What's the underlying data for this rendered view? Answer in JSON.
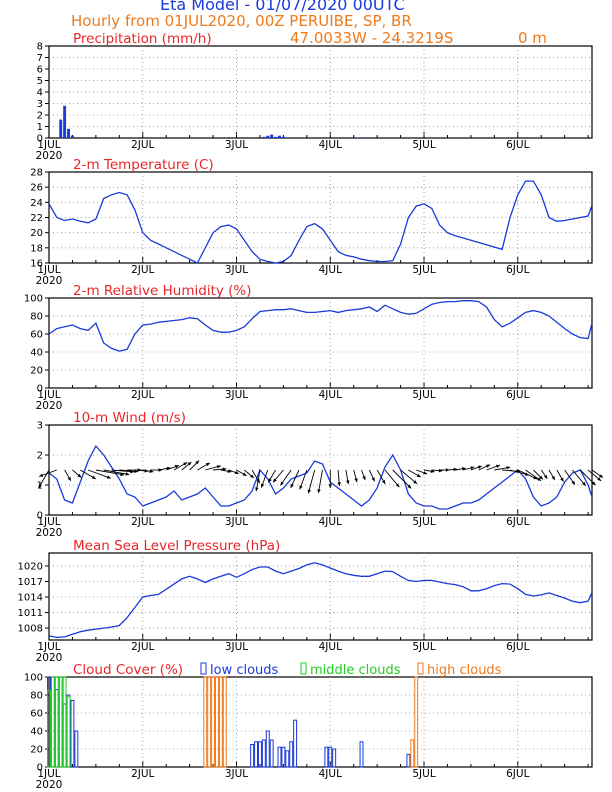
{
  "header": {
    "title": "Eta Model - 01/07/2020 00UTC",
    "subtitle": "Hourly from 01JUL2020, 00Z  PERUIBE, SP, BR",
    "coords": "47.0033W - 24.3219S",
    "elevation": "0   m"
  },
  "colors": {
    "title": "#1a3ad9",
    "subtitle": "#f07a1a",
    "panel_title": "#e8262a",
    "line": "#1a3ad9",
    "low": "#1a3ad9",
    "middle": "#1fcf1f",
    "high": "#f07a1a",
    "wind": "#000000",
    "grid": "#888888"
  },
  "chart_data": [
    {
      "id": "precip",
      "type": "bar",
      "title": "Precipitation (mm/h)",
      "ylim": [
        0,
        8
      ],
      "yticks": [
        0,
        1,
        2,
        3,
        4,
        5,
        6,
        7,
        8
      ],
      "x_days": [
        "1JUL",
        "2JUL",
        "3JUL",
        "4JUL",
        "5JUL",
        "6JUL"
      ],
      "x_year": "2020",
      "hours": [
        3,
        4,
        5,
        6,
        55,
        56,
        57,
        58,
        59,
        60,
        79
      ],
      "values": [
        1.6,
        2.8,
        0.8,
        0.2,
        0.1,
        0.2,
        0.3,
        0.1,
        0.2,
        0.1,
        0.05
      ]
    },
    {
      "id": "temp",
      "type": "line",
      "title": "2-m Temperature (C)",
      "ylim": [
        16,
        28
      ],
      "yticks": [
        16,
        18,
        20,
        22,
        24,
        26,
        28
      ],
      "x_days": [
        "1JUL",
        "2JUL",
        "3JUL",
        "4JUL",
        "5JUL",
        "6JUL"
      ],
      "x_year": "2020",
      "hours": [
        0,
        2,
        4,
        6,
        8,
        10,
        12,
        14,
        16,
        18,
        20,
        22,
        24,
        26,
        28,
        30,
        32,
        34,
        36,
        38,
        40,
        42,
        44,
        46,
        48,
        50,
        52,
        54,
        56,
        58,
        60,
        62,
        64,
        66,
        68,
        70,
        72,
        74,
        76,
        78,
        80,
        82,
        84,
        86,
        88,
        90,
        92,
        94,
        96,
        98,
        100,
        102,
        104,
        106,
        108,
        110,
        112,
        114,
        116,
        118,
        120,
        122,
        124,
        126,
        128,
        130,
        132,
        134,
        136,
        138,
        139
      ],
      "values": [
        23.8,
        22,
        21.6,
        21.8,
        21.5,
        21.3,
        21.8,
        24.5,
        25,
        25.3,
        25,
        23,
        20,
        19,
        18.5,
        18,
        17.5,
        17,
        16.5,
        16,
        18,
        20,
        20.8,
        21,
        20.5,
        19,
        17.5,
        16.5,
        16.2,
        16,
        16.2,
        17,
        19,
        20.8,
        21.2,
        20.5,
        19,
        17.5,
        17,
        16.8,
        16.5,
        16.3,
        16.2,
        16.2,
        16.3,
        18.5,
        22,
        23.5,
        23.8,
        23.2,
        21,
        20,
        19.6,
        19.3,
        19,
        18.7,
        18.4,
        18.1,
        17.8,
        22,
        25,
        26.8,
        26.8,
        25,
        22,
        21.5,
        21.6,
        21.8,
        22,
        22.2,
        23.6
      ]
    },
    {
      "id": "rh",
      "type": "line",
      "title": "2-m Relative Humidity (%)",
      "ylim": [
        0,
        100
      ],
      "yticks": [
        0,
        20,
        40,
        60,
        80,
        100
      ],
      "x_days": [
        "1JUL",
        "2JUL",
        "3JUL",
        "4JUL",
        "5JUL",
        "6JUL"
      ],
      "x_year": "2020",
      "hours": [
        0,
        2,
        4,
        6,
        8,
        10,
        12,
        14,
        16,
        18,
        20,
        22,
        24,
        26,
        28,
        30,
        32,
        34,
        36,
        38,
        40,
        42,
        44,
        46,
        48,
        50,
        52,
        54,
        56,
        58,
        60,
        62,
        64,
        66,
        68,
        70,
        72,
        74,
        76,
        78,
        80,
        82,
        84,
        86,
        88,
        90,
        92,
        94,
        96,
        98,
        100,
        102,
        104,
        106,
        108,
        110,
        112,
        114,
        116,
        118,
        120,
        122,
        124,
        126,
        128,
        130,
        132,
        134,
        136,
        138,
        139
      ],
      "values": [
        60,
        66,
        68,
        70,
        66,
        64,
        72,
        50,
        44,
        41,
        43,
        60,
        70,
        71,
        73,
        74,
        75,
        76,
        78,
        77,
        70,
        64,
        62,
        62,
        64,
        68,
        77,
        85,
        86,
        87,
        87,
        88,
        86,
        84,
        84,
        85,
        86,
        84,
        86,
        87,
        88,
        90,
        85,
        92,
        88,
        84,
        82,
        83,
        88,
        93,
        95,
        96,
        96,
        97,
        97,
        96,
        90,
        76,
        68,
        72,
        78,
        84,
        86,
        84,
        80,
        73,
        66,
        60,
        56,
        55,
        72
      ]
    },
    {
      "id": "wind",
      "type": "line",
      "title": "10-m Wind (m/s)",
      "ylim": [
        0,
        3
      ],
      "yticks": [
        0,
        1,
        2,
        3
      ],
      "x_days": [
        "1JUL",
        "2JUL",
        "3JUL",
        "4JUL",
        "5JUL",
        "6JUL"
      ],
      "x_year": "2020",
      "hours": [
        0,
        2,
        4,
        6,
        8,
        10,
        12,
        14,
        16,
        18,
        20,
        22,
        24,
        26,
        28,
        30,
        32,
        34,
        36,
        38,
        40,
        42,
        44,
        46,
        48,
        50,
        52,
        54,
        56,
        58,
        60,
        62,
        64,
        66,
        68,
        70,
        72,
        74,
        76,
        78,
        80,
        82,
        84,
        86,
        88,
        90,
        92,
        94,
        96,
        98,
        100,
        102,
        104,
        106,
        108,
        110,
        112,
        114,
        116,
        118,
        120,
        122,
        124,
        126,
        128,
        130,
        132,
        134,
        136,
        138,
        139
      ],
      "values": [
        1.4,
        1.2,
        0.5,
        0.4,
        1.1,
        1.8,
        2.3,
        2.0,
        1.6,
        1.2,
        0.7,
        0.6,
        0.3,
        0.4,
        0.5,
        0.6,
        0.8,
        0.5,
        0.6,
        0.7,
        0.9,
        0.6,
        0.3,
        0.3,
        0.4,
        0.5,
        0.8,
        1.5,
        1.2,
        0.7,
        0.9,
        1.2,
        1.3,
        1.4,
        1.8,
        1.7,
        1.1,
        0.9,
        0.7,
        0.5,
        0.3,
        0.5,
        0.9,
        1.6,
        2.0,
        1.5,
        0.7,
        0.4,
        0.3,
        0.3,
        0.2,
        0.2,
        0.3,
        0.4,
        0.4,
        0.5,
        0.7,
        0.9,
        1.1,
        1.3,
        1.5,
        1.2,
        0.6,
        0.3,
        0.4,
        0.6,
        1.1,
        1.4,
        1.5,
        1.0,
        0.6
      ],
      "arrow_dirs_deg": [
        240,
        200,
        300,
        320,
        330,
        340,
        350,
        350,
        355,
        355,
        0,
        355,
        350,
        0,
        10,
        20,
        30,
        40,
        45,
        30,
        15,
        5,
        350,
        340,
        330,
        320,
        300,
        260,
        250,
        240,
        230,
        235,
        245,
        250,
        255,
        260,
        270,
        275,
        280,
        285,
        290,
        295,
        300,
        310,
        315,
        320,
        330,
        340,
        350,
        355,
        0,
        5,
        10,
        15,
        20,
        25,
        20,
        10,
        355,
        345,
        335,
        325,
        315,
        305,
        300,
        300,
        305,
        310,
        315,
        320,
        325
      ]
    },
    {
      "id": "mslp",
      "type": "line",
      "title": "Mean Sea Level Pressure (hPa)",
      "ylim": [
        1005.7,
        1022.5
      ],
      "yticks": [
        1008,
        1011,
        1014,
        1017,
        1020
      ],
      "x_days": [
        "1JUL",
        "2JUL",
        "3JUL",
        "4JUL",
        "5JUL",
        "6JUL"
      ],
      "x_year": "2020",
      "hours": [
        0,
        2,
        4,
        6,
        8,
        10,
        12,
        14,
        16,
        18,
        20,
        22,
        24,
        26,
        28,
        30,
        32,
        34,
        36,
        38,
        40,
        42,
        44,
        46,
        48,
        50,
        52,
        54,
        56,
        58,
        60,
        62,
        64,
        66,
        68,
        70,
        72,
        74,
        76,
        78,
        80,
        82,
        84,
        86,
        88,
        90,
        92,
        94,
        96,
        98,
        100,
        102,
        104,
        106,
        108,
        110,
        112,
        114,
        116,
        118,
        120,
        122,
        124,
        126,
        128,
        130,
        132,
        134,
        136,
        138,
        139
      ],
      "values": [
        1006.5,
        1006.2,
        1006.3,
        1006.8,
        1007.3,
        1007.6,
        1007.8,
        1008.0,
        1008.2,
        1008.5,
        1010,
        1012,
        1014,
        1014.3,
        1014.5,
        1015.5,
        1016.5,
        1017.5,
        1018,
        1017.5,
        1016.8,
        1017.5,
        1018,
        1018.5,
        1017.8,
        1018.5,
        1019.3,
        1019.8,
        1019.8,
        1019,
        1018.5,
        1019,
        1019.5,
        1020.2,
        1020.6,
        1020.2,
        1019.6,
        1019.0,
        1018.5,
        1018.2,
        1018.0,
        1018.0,
        1018.5,
        1019.0,
        1018.9,
        1018.0,
        1017.2,
        1017.0,
        1017.2,
        1017.2,
        1016.9,
        1016.6,
        1016.4,
        1016.0,
        1015.2,
        1015.2,
        1015.6,
        1016.2,
        1016.6,
        1016.5,
        1015.6,
        1014.5,
        1014.2,
        1014.4,
        1014.8,
        1014.3,
        1013.8,
        1013.2,
        1012.9,
        1013.2,
        1014.9
      ]
    },
    {
      "id": "cloud",
      "type": "bar",
      "title": "Cloud Cover (%)",
      "legend": [
        "low clouds",
        "middle clouds",
        "high clouds"
      ],
      "ylim": [
        0,
        100
      ],
      "yticks": [
        0,
        20,
        40,
        60,
        80,
        100
      ],
      "x_days": [
        "1JUL",
        "2JUL",
        "3JUL",
        "4JUL",
        "5JUL",
        "6JUL"
      ],
      "x_year": "2020",
      "series": [
        {
          "name": "low",
          "hours": [
            0,
            1,
            2,
            3,
            4,
            5,
            6,
            7,
            52,
            53,
            54,
            55,
            56,
            57,
            59,
            60,
            61,
            62,
            63,
            71,
            72,
            73,
            80,
            92
          ],
          "values": [
            100,
            100,
            86,
            100,
            70,
            80,
            74,
            40,
            25,
            28,
            28,
            30,
            40,
            30,
            22,
            22,
            18,
            28,
            52,
            22,
            22,
            20,
            28,
            14
          ]
        },
        {
          "name": "middle",
          "hours": [
            0,
            1,
            2,
            3,
            4,
            5
          ],
          "values": [
            85,
            100,
            100,
            100,
            100,
            78
          ]
        },
        {
          "name": "high",
          "hours": [
            40,
            41,
            42,
            43,
            44,
            45,
            93,
            94
          ],
          "values": [
            100,
            100,
            100,
            100,
            100,
            100,
            30,
            100
          ]
        }
      ]
    }
  ]
}
